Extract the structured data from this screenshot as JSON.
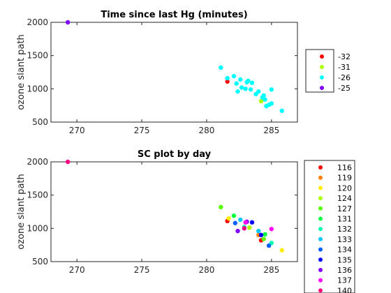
{
  "chart_data": [
    {
      "type": "scatter",
      "title": "Time since last Hg (minutes)",
      "xlabel": "",
      "ylabel": "ozone slant path",
      "xlim": [
        268,
        287
      ],
      "ylim": [
        500,
        2000
      ],
      "xticks": [
        "270",
        "275",
        "280",
        "285"
      ],
      "yticks": [
        "500",
        "1000",
        "1500",
        "2000"
      ],
      "grid": false,
      "legend_position": "right",
      "series": [
        {
          "name": "-32",
          "color": "#ff0000",
          "points": [
            [
              281.6,
              1110
            ]
          ]
        },
        {
          "name": "-31",
          "color": "#aaff00",
          "points": [
            [
              284.2,
              815
            ]
          ]
        },
        {
          "name": "-26",
          "color": "#00ffff",
          "points": [
            [
              281.1,
              1320
            ],
            [
              281.6,
              1160
            ],
            [
              282.1,
              1190
            ],
            [
              282.3,
              1080
            ],
            [
              282.4,
              960
            ],
            [
              282.6,
              1140
            ],
            [
              282.7,
              1020
            ],
            [
              283.0,
              1000
            ],
            [
              283.1,
              1100
            ],
            [
              283.2,
              1120
            ],
            [
              283.4,
              990
            ],
            [
              283.5,
              1090
            ],
            [
              283.8,
              920
            ],
            [
              284.0,
              960
            ],
            [
              284.3,
              870
            ],
            [
              284.4,
              900
            ],
            [
              284.5,
              840
            ],
            [
              284.6,
              740
            ],
            [
              284.8,
              760
            ],
            [
              285.0,
              780
            ],
            [
              285.0,
              990
            ],
            [
              285.8,
              670
            ]
          ]
        },
        {
          "name": "-25",
          "color": "#8000ff",
          "points": [
            [
              269.3,
              2000
            ]
          ]
        }
      ]
    },
    {
      "type": "scatter",
      "title": "SC plot by day",
      "xlabel": "",
      "ylabel": "ozone slant path",
      "xlim": [
        268,
        287
      ],
      "ylim": [
        500,
        2000
      ],
      "xticks": [
        "270",
        "275",
        "280",
        "285"
      ],
      "yticks": [
        "500",
        "1000",
        "1500",
        "2000"
      ],
      "grid": false,
      "legend_position": "right",
      "series": [
        {
          "name": "116",
          "color": "#ff0000",
          "points": [
            [
              281.6,
              1110
            ],
            [
              284.2,
              820
            ]
          ]
        },
        {
          "name": "119",
          "color": "#ff8000",
          "points": [
            [
              284.0,
              900
            ]
          ]
        },
        {
          "name": "120",
          "color": "#ffee00",
          "points": [
            [
              281.7,
              1150
            ],
            [
              285.8,
              670
            ]
          ]
        },
        {
          "name": "124",
          "color": "#aaff00",
          "points": [
            [
              283.3,
              1010
            ]
          ]
        },
        {
          "name": "127",
          "color": "#55ff00",
          "points": [
            [
              281.1,
              1320
            ],
            [
              284.4,
              840
            ]
          ]
        },
        {
          "name": "131",
          "color": "#00ff40",
          "points": [
            [
              282.1,
              1190
            ],
            [
              284.5,
              910
            ]
          ]
        },
        {
          "name": "132",
          "color": "#00ffb0",
          "points": [
            [
              282.9,
              1020
            ],
            [
              285.0,
              780
            ]
          ]
        },
        {
          "name": "133",
          "color": "#00c8ff",
          "points": [
            [
              282.6,
              1130
            ],
            [
              284.0,
              960
            ]
          ]
        },
        {
          "name": "134",
          "color": "#0060ff",
          "points": [
            [
              282.2,
              1080
            ],
            [
              284.8,
              740
            ]
          ]
        },
        {
          "name": "135",
          "color": "#0000ff",
          "points": [
            [
              283.5,
              1090
            ],
            [
              284.2,
              900
            ]
          ]
        },
        {
          "name": "136",
          "color": "#8000ff",
          "points": [
            [
              282.4,
              960
            ],
            [
              283.1,
              1100
            ]
          ]
        },
        {
          "name": "137",
          "color": "#ff00ff",
          "points": [
            [
              283.0,
              1090
            ],
            [
              285.0,
              990
            ]
          ]
        },
        {
          "name": "140",
          "color": "#ff0080",
          "points": [
            [
              269.3,
              2000
            ],
            [
              282.9,
              1000
            ]
          ]
        }
      ]
    }
  ]
}
